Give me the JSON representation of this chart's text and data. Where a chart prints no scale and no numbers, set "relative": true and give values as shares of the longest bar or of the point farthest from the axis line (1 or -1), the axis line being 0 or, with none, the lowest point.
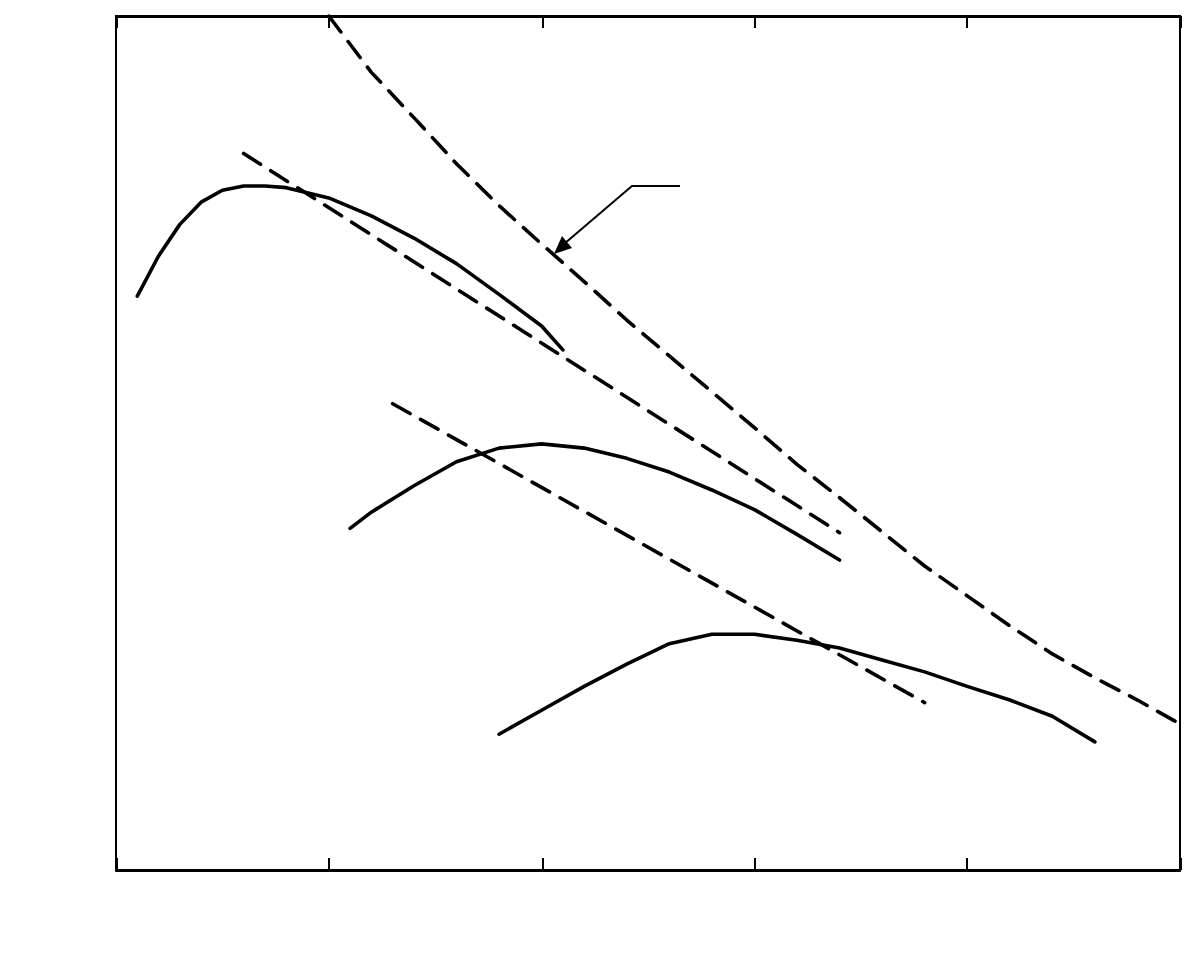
{
  "chart_data": {
    "type": "line",
    "relative": true,
    "grid": false,
    "marker": "none",
    "categories": [
      null,
      null,
      null,
      null,
      null,
      null,
      null,
      null,
      null,
      null,
      null,
      null,
      null,
      null,
      null,
      null,
      null,
      null,
      null,
      null,
      null,
      null,
      null,
      null,
      null,
      null,
      null,
      null,
      null,
      null,
      null,
      null,
      null,
      null,
      null,
      null,
      null,
      null,
      null,
      null,
      null,
      null,
      null,
      null,
      null,
      null,
      null,
      null,
      null,
      null,
      null
    ],
    "series": [
      {
        "color": "#000000",
        "line_style": "solid",
        "values": [
          null,
          0.672,
          0.719,
          0.756,
          0.782,
          0.796,
          0.801,
          0.801,
          0.799,
          null,
          0.787,
          null,
          0.766,
          null,
          0.74,
          null,
          0.71,
          null,
          0.674,
          null,
          0.637,
          0.609,
          null,
          null,
          null,
          null,
          null,
          null,
          null,
          null,
          null,
          null,
          null,
          null,
          null,
          null,
          null,
          null,
          null,
          null,
          null,
          null,
          null,
          null,
          null,
          null,
          null,
          null,
          null,
          null,
          null
        ]
      },
      {
        "color": "#000000",
        "line_style": "dashed",
        "values": [
          null,
          null,
          null,
          null,
          null,
          null,
          0.839,
          null,
          null,
          null,
          null,
          null,
          null,
          null,
          null,
          null,
          null,
          null,
          null,
          null,
          null,
          null,
          null,
          null,
          null,
          null,
          null,
          null,
          null,
          null,
          null,
          null,
          null,
          null,
          0.395,
          null,
          null,
          null,
          null,
          null,
          null,
          null,
          null,
          null,
          null,
          null,
          null,
          null,
          null,
          null,
          null
        ]
      },
      {
        "color": "#000000",
        "line_style": "solid",
        "values": [
          null,
          null,
          null,
          null,
          null,
          null,
          null,
          null,
          null,
          null,
          null,
          0.4,
          0.419,
          null,
          0.45,
          null,
          0.478,
          null,
          0.494,
          null,
          0.499,
          null,
          0.494,
          null,
          0.482,
          null,
          0.466,
          null,
          0.445,
          null,
          0.422,
          null,
          0.393,
          null,
          0.363,
          null,
          null,
          null,
          null,
          null,
          null,
          null,
          null,
          null,
          null,
          null,
          null,
          null,
          null,
          null,
          null
        ]
      },
      {
        "color": "#000000",
        "line_style": "dashed",
        "values": [
          null,
          null,
          null,
          null,
          null,
          null,
          null,
          null,
          null,
          null,
          null,
          null,
          null,
          0.546,
          null,
          null,
          null,
          null,
          null,
          null,
          null,
          null,
          null,
          null,
          null,
          null,
          null,
          null,
          null,
          null,
          null,
          null,
          null,
          null,
          null,
          null,
          null,
          null,
          0.196,
          null,
          null,
          null,
          null,
          null,
          null,
          null,
          null,
          null,
          null,
          null,
          null
        ]
      },
      {
        "color": "#000000",
        "line_style": "solid",
        "values": [
          null,
          null,
          null,
          null,
          null,
          null,
          null,
          null,
          null,
          null,
          null,
          null,
          null,
          null,
          null,
          null,
          null,
          null,
          0.159,
          null,
          0.187,
          null,
          0.215,
          null,
          0.241,
          null,
          0.265,
          null,
          0.276,
          null,
          0.276,
          null,
          0.269,
          null,
          0.26,
          null,
          0.246,
          null,
          0.232,
          null,
          0.215,
          null,
          0.199,
          null,
          0.18,
          null,
          0.15,
          null,
          null,
          null,
          null
        ]
      },
      {
        "color": "#000000",
        "line_style": "dashed",
        "values": [
          null,
          null,
          null,
          null,
          null,
          null,
          null,
          null,
          null,
          null,
          1,
          null,
          0.934,
          null,
          0.881,
          null,
          0.827,
          null,
          0.778,
          null,
          0.733,
          null,
          0.689,
          null,
          0.644,
          null,
          0.602,
          null,
          0.56,
          null,
          0.518,
          null,
          0.475,
          null,
          0.436,
          null,
          0.396,
          null,
          0.356,
          null,
          0.321,
          null,
          0.286,
          null,
          0.253,
          null,
          0.225,
          null,
          0.199,
          null,
          0.171
        ]
      }
    ]
  }
}
